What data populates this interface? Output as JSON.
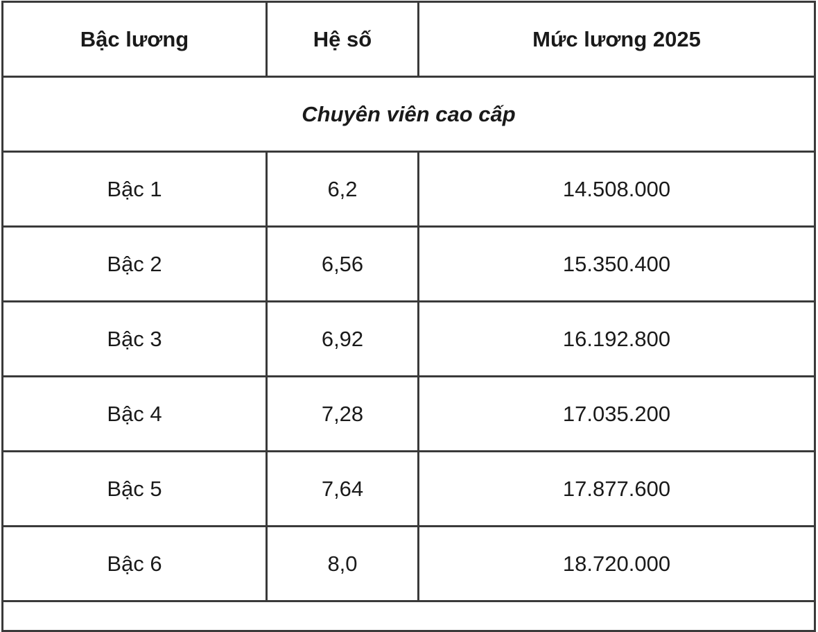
{
  "table": {
    "headers": [
      "Bậc lương",
      "Hệ số",
      "Mức lương 2025"
    ],
    "section_title": "Chuyên viên cao cấp",
    "rows": [
      [
        "Bậc 1",
        "6,2",
        "14.508.000"
      ],
      [
        "Bậc 2",
        "6,56",
        "15.350.400"
      ],
      [
        "Bậc 3",
        "6,92",
        "16.192.800"
      ],
      [
        "Bậc 4",
        "7,28",
        "17.035.200"
      ],
      [
        "Bậc 5",
        "7,64",
        "17.877.600"
      ],
      [
        "Bậc 6",
        "8,0",
        "18.720.000"
      ]
    ]
  }
}
